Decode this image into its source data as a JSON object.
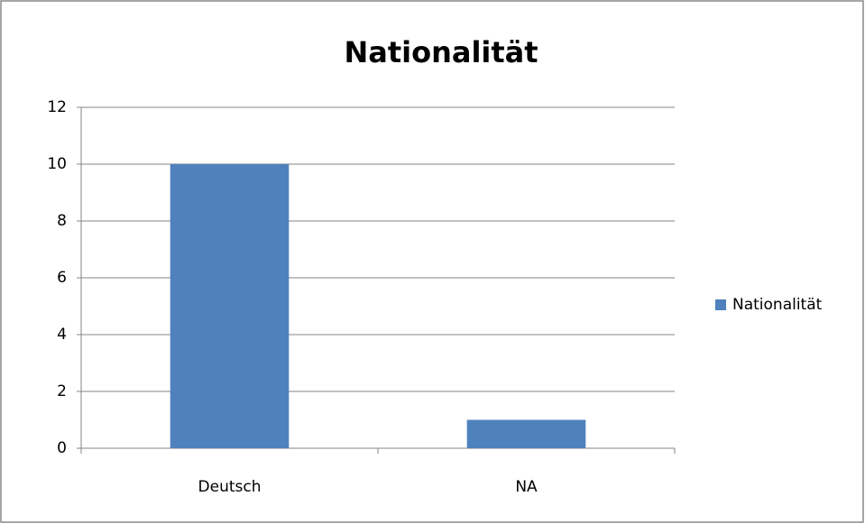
{
  "chart_data": {
    "type": "bar",
    "title": "Nationalität",
    "categories": [
      "Deutsch",
      "NA"
    ],
    "series": [
      {
        "name": "Nationalität",
        "color": "#4f81bd",
        "values": [
          10,
          1
        ]
      }
    ],
    "ylim": [
      0,
      12
    ],
    "yticks": [
      0,
      2,
      4,
      6,
      8,
      10,
      12
    ],
    "grid": true,
    "legend": "right"
  }
}
